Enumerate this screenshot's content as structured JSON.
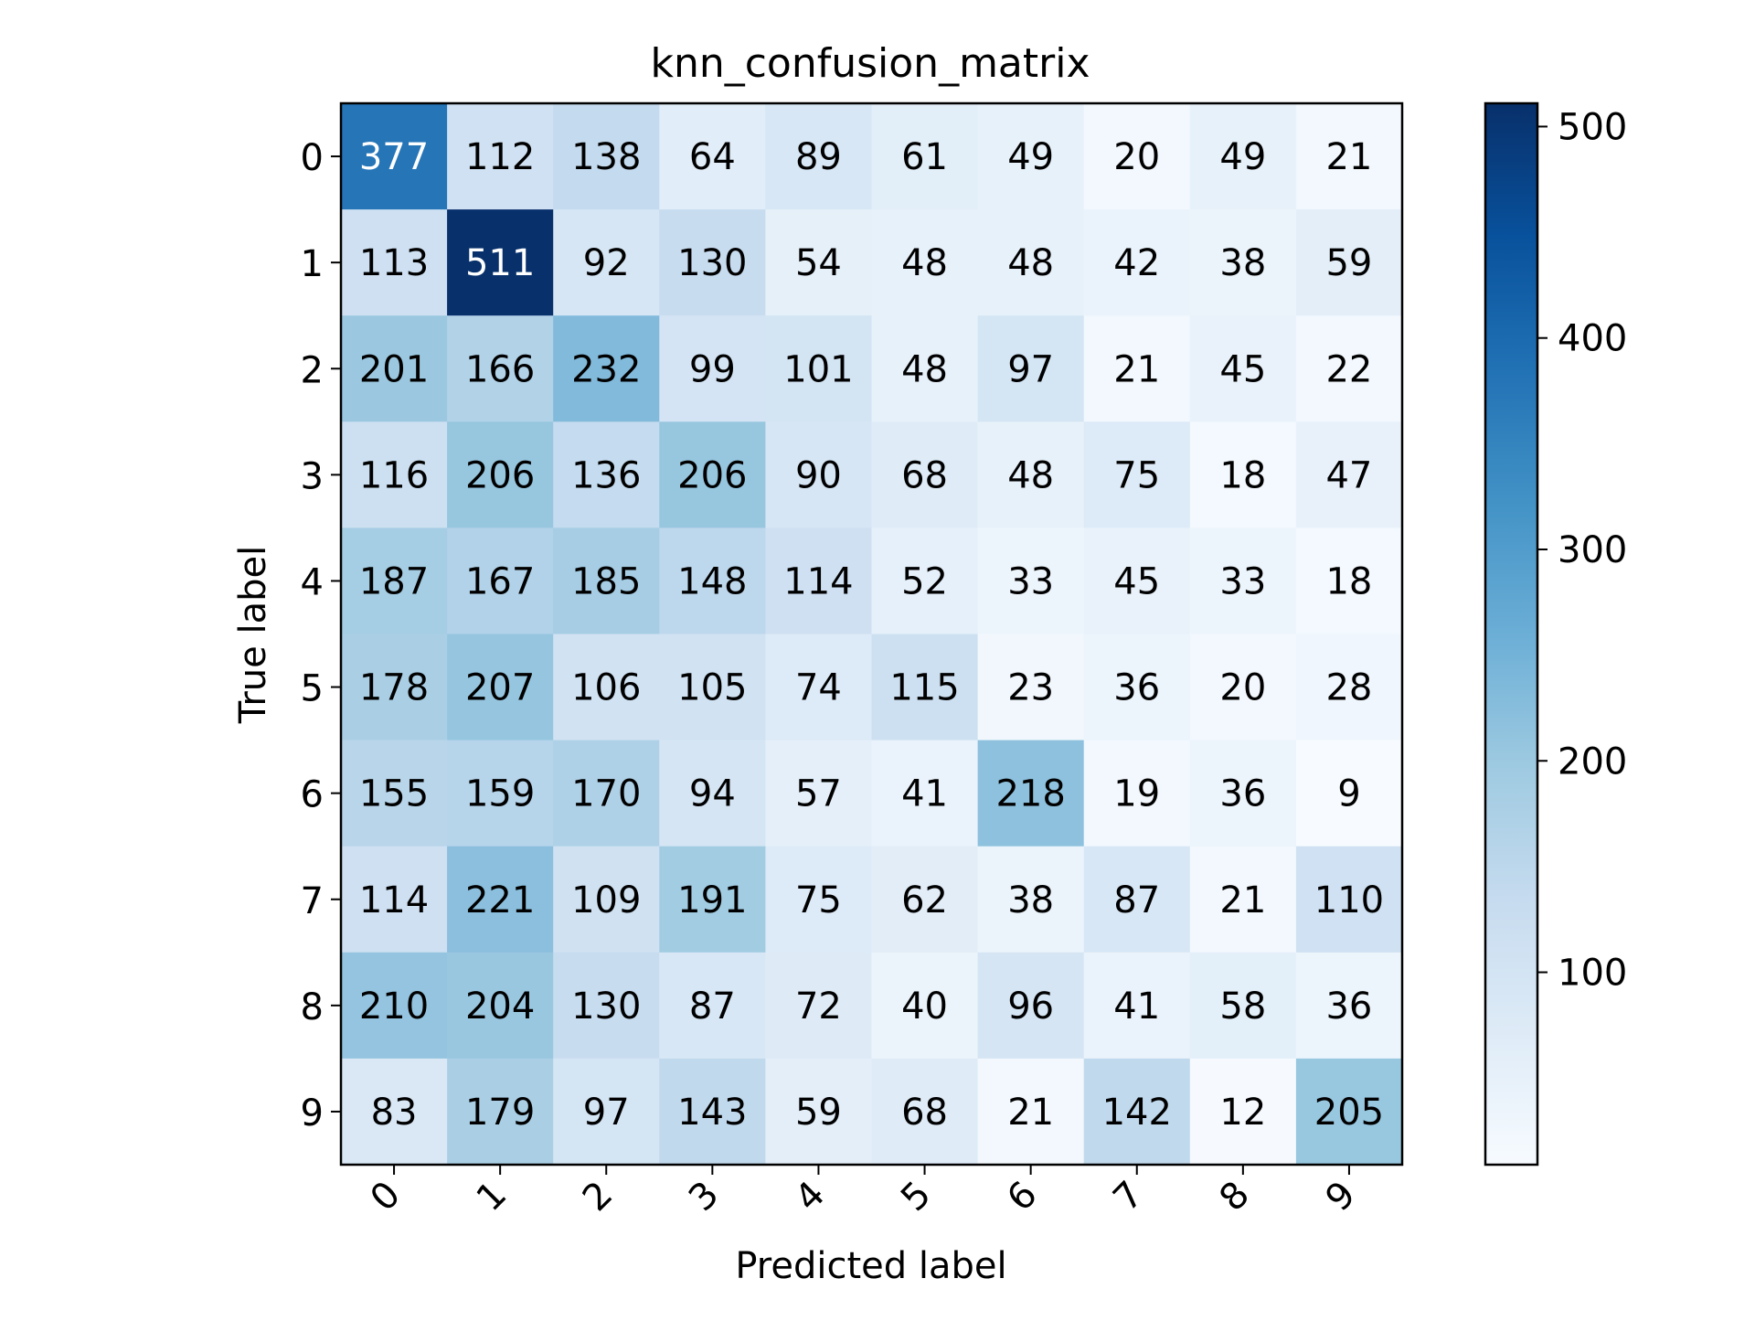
{
  "chart_data": {
    "type": "heatmap",
    "title": "knn_confusion_matrix",
    "xlabel": "Predicted label",
    "ylabel": "True label",
    "x_categories": [
      "0",
      "1",
      "2",
      "3",
      "4",
      "5",
      "6",
      "7",
      "8",
      "9"
    ],
    "y_categories": [
      "0",
      "1",
      "2",
      "3",
      "4",
      "5",
      "6",
      "7",
      "8",
      "9"
    ],
    "values": [
      [
        377,
        112,
        138,
        64,
        89,
        61,
        49,
        20,
        49,
        21
      ],
      [
        113,
        511,
        92,
        130,
        54,
        48,
        48,
        42,
        38,
        59
      ],
      [
        201,
        166,
        232,
        99,
        101,
        48,
        97,
        21,
        45,
        22
      ],
      [
        116,
        206,
        136,
        206,
        90,
        68,
        48,
        75,
        18,
        47
      ],
      [
        187,
        167,
        185,
        148,
        114,
        52,
        33,
        45,
        33,
        18
      ],
      [
        178,
        207,
        106,
        105,
        74,
        115,
        23,
        36,
        20,
        28
      ],
      [
        155,
        159,
        170,
        94,
        57,
        41,
        218,
        19,
        36,
        9
      ],
      [
        114,
        221,
        109,
        191,
        75,
        62,
        38,
        87,
        21,
        110
      ],
      [
        210,
        204,
        130,
        87,
        72,
        40,
        96,
        41,
        58,
        36
      ],
      [
        83,
        179,
        97,
        143,
        59,
        68,
        21,
        142,
        12,
        205
      ]
    ],
    "colormap": "Blues",
    "vmin": 9,
    "vmax": 511,
    "colorbar_ticks": [
      100,
      200,
      300,
      400,
      500
    ],
    "x_tick_rotation_deg": 45,
    "grid": false
  }
}
